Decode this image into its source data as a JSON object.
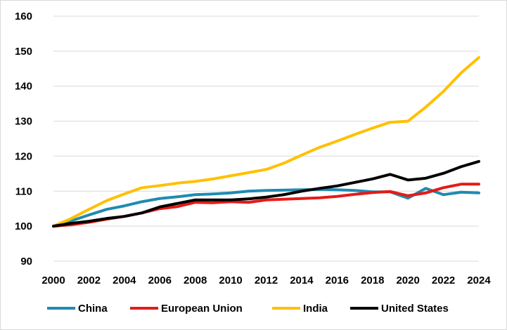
{
  "chart_data": {
    "type": "line",
    "title": "",
    "xlabel": "",
    "ylabel": "",
    "x": [
      2000,
      2001,
      2002,
      2003,
      2004,
      2005,
      2006,
      2007,
      2008,
      2009,
      2010,
      2011,
      2012,
      2013,
      2014,
      2015,
      2016,
      2017,
      2018,
      2019,
      2020,
      2021,
      2022,
      2023,
      2024
    ],
    "x_tick_labels": [
      "2000",
      "2002",
      "2004",
      "2006",
      "2008",
      "2010",
      "2012",
      "2014",
      "2016",
      "2018",
      "2020",
      "2022",
      "2024"
    ],
    "y_tick_labels": [
      "90",
      "100",
      "110",
      "120",
      "130",
      "140",
      "150",
      "160"
    ],
    "xlim": [
      2000,
      2024
    ],
    "ylim": [
      90,
      160
    ],
    "grid": "horizontal",
    "legend_position": "bottom",
    "series": [
      {
        "name": "China",
        "color": "#1f8bb0",
        "values": [
          100,
          101.5,
          103.2,
          104.8,
          105.8,
          107,
          107.9,
          108.4,
          109,
          109.2,
          109.5,
          110,
          110.2,
          110.3,
          110.4,
          110.5,
          110.4,
          110.2,
          109.8,
          109.8,
          108,
          110.8,
          109,
          109.7,
          109.5
        ]
      },
      {
        "name": "European Union",
        "color": "#e41b17",
        "values": [
          100,
          100.4,
          101.1,
          102,
          102.8,
          103.8,
          105,
          105.6,
          106.8,
          106.7,
          107,
          106.8,
          107.5,
          107.7,
          107.9,
          108.1,
          108.5,
          109.1,
          109.6,
          109.9,
          108.7,
          109.5,
          111,
          112,
          112
        ]
      },
      {
        "name": "India",
        "color": "#ffc000",
        "values": [
          100,
          102.2,
          104.8,
          107.3,
          109.2,
          111,
          111.6,
          112.3,
          112.8,
          113.5,
          114.4,
          115.3,
          116.2,
          118,
          120.3,
          122.5,
          124.3,
          126.2,
          128,
          129.7,
          130,
          134,
          138.5,
          143.8,
          148.2
        ]
      },
      {
        "name": "United States",
        "color": "#000000",
        "values": [
          100,
          100.8,
          101.4,
          102.2,
          102.8,
          103.8,
          105.5,
          106.5,
          107.5,
          107.5,
          107.5,
          107.8,
          108.3,
          109,
          110,
          110.8,
          111.5,
          112.5,
          113.5,
          114.8,
          113.2,
          113.7,
          115.1,
          117,
          118.5
        ]
      }
    ]
  }
}
